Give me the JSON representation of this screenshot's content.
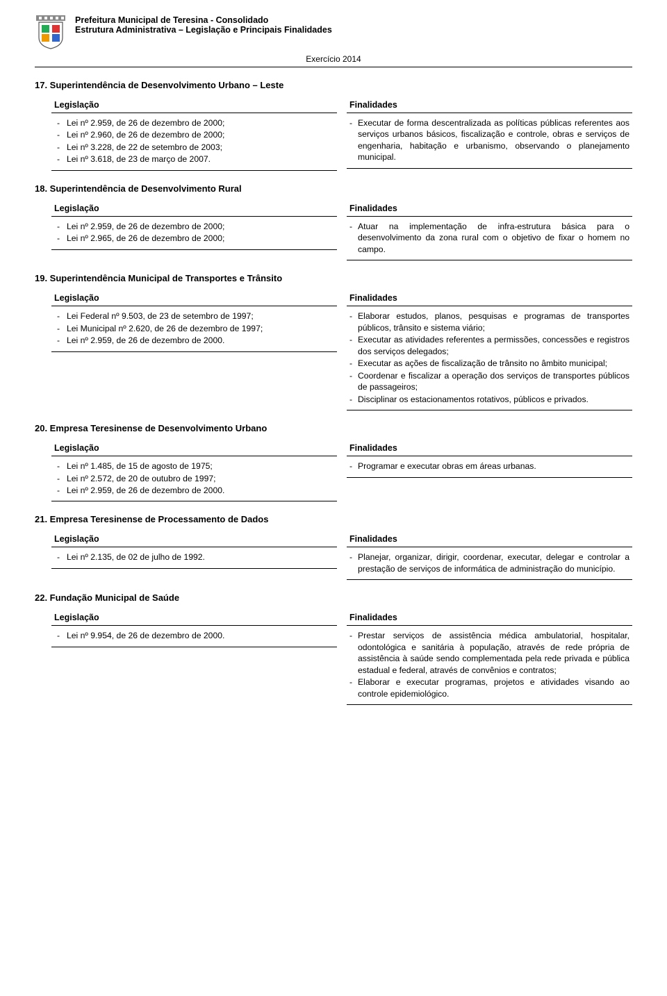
{
  "header": {
    "line1": "Prefeitura Municipal de Teresina - Consolidado",
    "line2": "Estrutura Administrativa – Legislação e Principais Finalidades",
    "exercicio": "Exercício 2014"
  },
  "labels": {
    "legislacao": "Legislação",
    "finalidades": "Finalidades"
  },
  "sections": [
    {
      "title": "17. Superintendência de Desenvolvimento Urbano – Leste",
      "legislacao": [
        "Lei nº 2.959, de 26 de dezembro de 2000;",
        "Lei nº 2.960, de 26 de dezembro de 2000;",
        "Lei nº 3.228, de 22 de setembro de 2003;",
        "Lei nº 3.618, de 23 de março de 2007."
      ],
      "finalidades": [
        "Executar de forma descentralizada as políticas públicas referentes aos serviços urbanos básicos, fiscalização e controle, obras e serviços de engenharia, habitação e urbanismo, observando o planejamento municipal."
      ]
    },
    {
      "title": "18. Superintendência de Desenvolvimento Rural",
      "legislacao": [
        "Lei nº 2.959, de 26 de dezembro de 2000;",
        "Lei nº 2.965, de 26 de dezembro de 2000;"
      ],
      "finalidades": [
        "Atuar na implementação de infra-estrutura básica para o desenvolvimento da zona rural com o objetivo de fixar o homem no campo."
      ]
    },
    {
      "title": "19. Superintendência Municipal de Transportes e Trânsito",
      "legislacao": [
        "Lei Federal nº 9.503, de 23 de setembro de 1997;",
        "Lei Municipal nº 2.620, de 26 de dezembro de 1997;",
        "Lei nº 2.959, de 26 de dezembro de 2000."
      ],
      "finalidades": [
        "Elaborar estudos, planos, pesquisas e programas de transportes públicos, trânsito e sistema viário;",
        "Executar as atividades referentes a permissões, concessões e registros dos serviços delegados;",
        "Executar as ações de fiscalização de trânsito no âmbito municipal;",
        "Coordenar e fiscalizar a operação dos serviços de transportes públicos de passageiros;",
        "Disciplinar os estacionamentos rotativos, públicos e privados."
      ]
    },
    {
      "title": "20. Empresa Teresinense de Desenvolvimento Urbano",
      "legislacao": [
        "Lei nº 1.485, de 15 de agosto de 1975;",
        "Lei nº 2.572, de 20 de outubro de 1997;",
        "Lei nº 2.959, de 26 de dezembro de 2000."
      ],
      "finalidades": [
        "Programar e executar obras em áreas urbanas."
      ]
    },
    {
      "title": "21. Empresa Teresinense de Processamento de Dados",
      "legislacao": [
        "Lei nº 2.135, de 02 de julho de 1992."
      ],
      "finalidades": [
        "Planejar, organizar, dirigir, coordenar, executar, delegar e controlar a prestação de serviços de informática de administração do município."
      ]
    },
    {
      "title": "22. Fundação Municipal de Saúde",
      "legislacao": [
        "Lei nº 9.954, de 26 de dezembro de 2000."
      ],
      "finalidades": [
        "Prestar serviços de assistência médica ambulatorial, hospitalar, odontológica e sanitária à população, através de rede própria de assistência à saúde sendo complementada pela rede privada e pública estadual e federal, através de convênios e contratos;",
        "Elaborar e executar programas, projetos e atividades visando ao controle epidemiológico."
      ]
    }
  ],
  "colors": {
    "text": "#000000",
    "background": "#ffffff",
    "rule": "#000000"
  }
}
